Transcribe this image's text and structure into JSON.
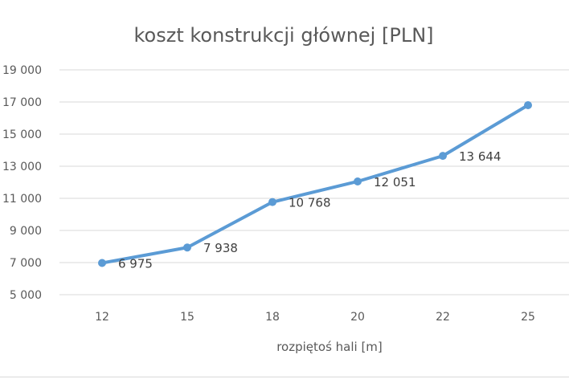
{
  "chart_data": {
    "type": "line",
    "title": "koszt konstrukcji głównej [PLN]",
    "xlabel": "rozpiętoś hali [m]",
    "ylabel": "",
    "categories": [
      "12",
      "15",
      "18",
      "20",
      "22",
      "25"
    ],
    "values": [
      6975,
      7938,
      10768,
      12051,
      13644,
      16800
    ],
    "data_labels": [
      "6 975",
      "7 938",
      "10 768",
      "12 051",
      "13 644",
      ""
    ],
    "ylim": [
      5000,
      19000
    ],
    "y_ticks": [
      5000,
      7000,
      9000,
      11000,
      13000,
      15000,
      17000,
      19000
    ],
    "y_tick_labels": [
      "5 000",
      "7 000",
      "9 000",
      "11 000",
      "13 000",
      "15 000",
      "17 000",
      "19 000"
    ],
    "grid": true,
    "legend": "none",
    "colors": {
      "line": "#5b9bd5",
      "grid": "#d9d9d9",
      "text": "#595959"
    }
  }
}
